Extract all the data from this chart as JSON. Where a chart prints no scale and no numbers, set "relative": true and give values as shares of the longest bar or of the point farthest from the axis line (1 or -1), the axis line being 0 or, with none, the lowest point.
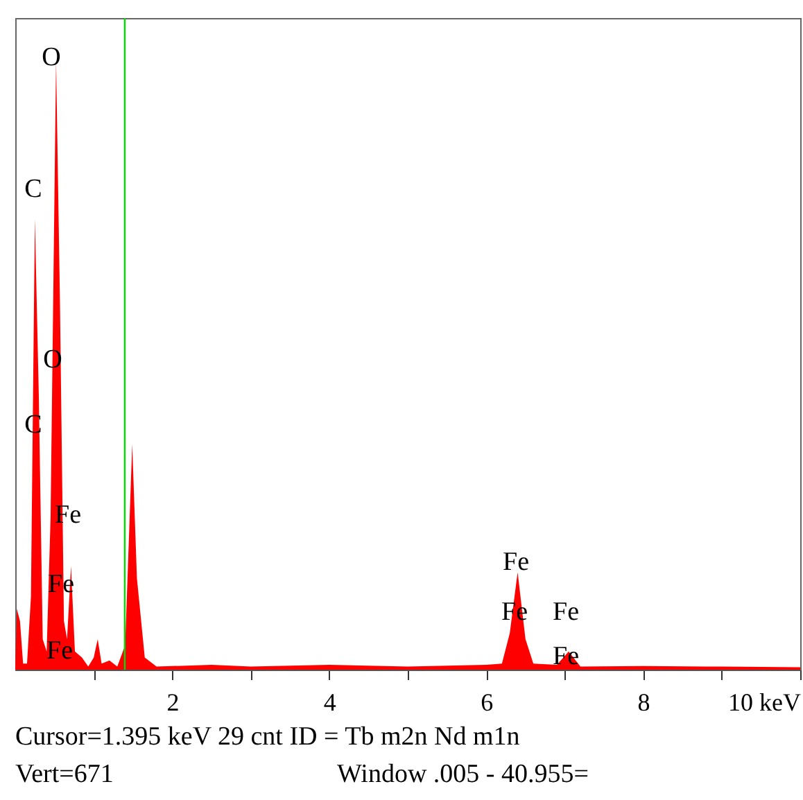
{
  "chart_data": {
    "type": "area",
    "relative": true,
    "x": [
      0,
      0.02,
      0.06,
      0.1,
      0.15,
      0.2,
      0.25,
      0.3,
      0.35,
      0.4,
      0.45,
      0.52,
      0.57,
      0.62,
      0.66,
      0.71,
      0.76,
      0.85,
      0.93,
      1.0,
      1.05,
      1.1,
      1.2,
      1.3,
      1.4,
      1.49,
      1.55,
      1.65,
      1.8,
      2.5,
      3.0,
      4.0,
      5.0,
      6.0,
      6.2,
      6.3,
      6.4,
      6.5,
      6.6,
      6.9,
      7.05,
      7.2,
      8.0,
      9.0,
      10.0
    ],
    "series": [
      {
        "color": "#ff0000",
        "values": [
          0,
          0.1,
          0.08,
          0.01,
          0.01,
          0.12,
          0.74,
          0.45,
          0.05,
          0.03,
          0.25,
          1,
          0.6,
          0.08,
          0.05,
          0.17,
          0.03,
          0.02,
          0.005,
          0.02,
          0.05,
          0.01,
          0.015,
          0.005,
          0.04,
          0.37,
          0.15,
          0.02,
          0.005,
          0.008,
          0.005,
          0.008,
          0.005,
          0.008,
          0.01,
          0.06,
          0.16,
          0.05,
          0.01,
          0.008,
          0.03,
          0.005,
          0.006,
          0.005,
          0.004
        ]
      }
    ],
    "xlim": [
      0,
      10
    ],
    "xticks": [
      {
        "value": 1,
        "label": null
      },
      2,
      {
        "value": 3,
        "label": null
      },
      4,
      {
        "value": 5,
        "label": null
      },
      6,
      {
        "value": 7,
        "label": null
      },
      8,
      {
        "value": 9,
        "label": null
      },
      {
        "value": 10,
        "label": "10 keV"
      }
    ],
    "grid": false,
    "ref_lines": [
      {
        "axis": "x",
        "value": 1.395,
        "color": "#00dd00"
      }
    ],
    "annotations": [
      "O",
      "C",
      "O",
      "C",
      "Fe",
      "Fe",
      "Fe",
      "Fe",
      "Fe",
      "Fe",
      "Fe",
      "Cursor=1.395 keV   29 cnt  ID = Tb m2n  Nd m1n",
      "Vert=671",
      "Window .005 - 40.955="
    ]
  }
}
